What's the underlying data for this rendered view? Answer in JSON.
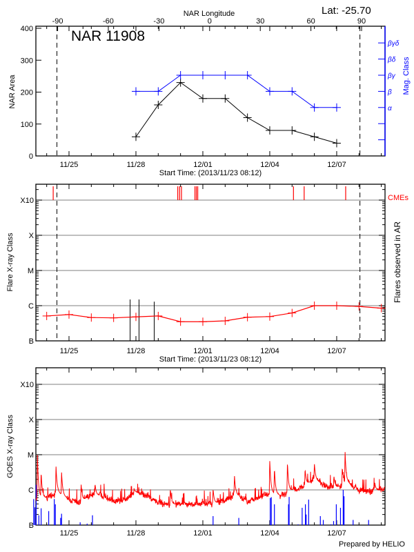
{
  "header": {
    "lat_label": "Lat: -25.70",
    "prepared_by": "Prepared by HELIO"
  },
  "chart_data": [
    {
      "type": "line",
      "title": "NAR 11908",
      "xlabel": "Start Time: (2013/11/23 08:12)",
      "x2label": "NAR Longitude",
      "ylabel": "NAR Area",
      "y2label": "Mag. Class",
      "x_tick_labels": [
        "11/25",
        "11/28",
        "12/01",
        "12/04",
        "12/07"
      ],
      "x_tick_dates": [
        "2013-11-25",
        "2013-11-28",
        "2013-12-01",
        "2013-12-04",
        "2013-12-07"
      ],
      "x2_ticks": [
        -90,
        -60,
        -30,
        0,
        30,
        60,
        90
      ],
      "ylim": [
        0,
        400
      ],
      "y_ticks": [
        0,
        100,
        200,
        300,
        400
      ],
      "y2_categories": [
        "α",
        "β",
        "βγ",
        "βδ",
        "βγδ"
      ],
      "dates": [
        "2013-11-28",
        "2013-11-29",
        "2013-11-30",
        "2013-12-01",
        "2013-12-02",
        "2013-12-03",
        "2013-12-04",
        "2013-12-05",
        "2013-12-06",
        "2013-12-07"
      ],
      "series": [
        {
          "name": "NAR Area",
          "color": "#000000",
          "values": [
            60,
            160,
            230,
            180,
            180,
            120,
            80,
            80,
            60,
            40
          ]
        },
        {
          "name": "Mag. Class",
          "color": "#0000ff",
          "values": [
            "β",
            "β",
            "βγ",
            "βγ",
            "βγ",
            "βγ",
            "β",
            "β",
            "α",
            "α"
          ]
        }
      ],
      "limb_crossings": [
        "2013-11-24T11:00",
        "2013-12-08T01:00"
      ]
    },
    {
      "type": "line",
      "xlabel": "Start Time: (2013/11/23 08:12)",
      "ylabel": "Flare X-ray Class",
      "y2label": "Flares observed in AR",
      "cme_label": "CMEs",
      "y_scale": "log",
      "y_tick_labels": [
        "B",
        "C",
        "M",
        "X",
        "X10"
      ],
      "grid": true,
      "x_tick_labels": [
        "11/25",
        "11/28",
        "12/01",
        "12/04",
        "12/07"
      ],
      "background_flux": {
        "color": "#ff0000",
        "dates": [
          "2013-11-24",
          "2013-11-25",
          "2013-11-26",
          "2013-11-27",
          "2013-11-28",
          "2013-11-29",
          "2013-11-30",
          "2013-12-01",
          "2013-12-02",
          "2013-12-03",
          "2013-12-04",
          "2013-12-05",
          "2013-12-06",
          "2013-12-07",
          "2013-12-08",
          "2013-12-09"
        ],
        "values": [
          5.1e-07,
          5.6e-07,
          4.6e-07,
          4.5e-07,
          4.8e-07,
          5.1e-07,
          3.5e-07,
          3.5e-07,
          3.7e-07,
          4.7e-07,
          4.9e-07,
          6.2e-07,
          1e-06,
          1e-06,
          9.5e-07,
          8.5e-07
        ]
      },
      "flares": [
        {
          "date": "2013-11-27T17:45",
          "peak": 1.5e-06
        },
        {
          "date": "2013-11-28T03:20",
          "peak": 1.5e-06
        },
        {
          "date": "2013-11-28T19:40",
          "peak": 1.3e-06
        }
      ],
      "cmes": [
        "2013-11-24T07:00",
        "2013-11-29T21:00",
        "2013-11-29T23:00",
        "2013-11-30T01:00",
        "2013-11-30T15:30",
        "2013-11-30T17:00",
        "2013-11-30T18:30",
        "2013-12-05T01:30",
        "2013-12-05T13:00",
        "2013-12-07T09:40"
      ],
      "cme_color": "#ff0000",
      "limb_crossings": [
        "2013-11-24T11:00",
        "2013-12-08T01:00"
      ]
    },
    {
      "type": "line",
      "ylabel": "GOES X-ray Class",
      "y_scale": "log",
      "y_tick_labels": [
        "B",
        "C",
        "M",
        "X",
        "X10"
      ],
      "grid": true,
      "x_tick_labels": [
        "11/25",
        "11/28",
        "12/01",
        "12/04",
        "12/07"
      ],
      "goes_flux": {
        "color": "#ff0000",
        "dates": [
          "2013-11-23T12:00",
          "2013-11-24T00:00",
          "2013-11-24T12:00",
          "2013-11-25T00:00",
          "2013-11-25T12:00",
          "2013-11-26T00:00",
          "2013-11-26T12:00",
          "2013-11-27T00:00",
          "2013-11-27T12:00",
          "2013-11-28T00:00",
          "2013-11-28T12:00",
          "2013-11-29T00:00",
          "2013-11-29T12:00",
          "2013-11-30T00:00",
          "2013-11-30T12:00",
          "2013-12-01T00:00",
          "2013-12-01T12:00",
          "2013-12-02T00:00",
          "2013-12-02T12:00",
          "2013-12-03T00:00",
          "2013-12-03T12:00",
          "2013-12-04T00:00",
          "2013-12-04T12:00",
          "2013-12-05T00:00",
          "2013-12-05T12:00",
          "2013-12-06T00:00",
          "2013-12-06T12:00",
          "2013-12-07T00:00",
          "2013-12-07T12:00",
          "2013-12-08T00:00",
          "2013-12-08T12:00",
          "2013-12-09T00:00",
          "2013-12-09T04:00"
        ],
        "values": [
          6e-07,
          6e-07,
          8.5e-07,
          5.5e-07,
          4.4e-07,
          7.4e-07,
          6.9e-07,
          4.7e-07,
          5.3e-07,
          8.5e-07,
          6.9e-07,
          4.4e-07,
          3.8e-07,
          4.1e-07,
          4e-07,
          4.1e-07,
          4.1e-07,
          5.1e-07,
          7.4e-07,
          4.7e-07,
          6e-07,
          8.5e-07,
          6.9e-07,
          1e-06,
          1.2e-06,
          2.1e-06,
          1.25e-06,
          1.2e-06,
          1.6e-06,
          1e-06,
          9.3e-07,
          1e-06,
          1.1e-06
        ],
        "peaks": [
          {
            "date": "2013-11-23T14:00",
            "flux": 1.07e-05
          },
          {
            "date": "2013-11-23T18:00",
            "flux": 3.3e-06
          },
          {
            "date": "2013-11-24T10:00",
            "flux": 4.9e-06
          },
          {
            "date": "2013-11-24T16:00",
            "flux": 3.2e-06
          },
          {
            "date": "2013-11-25T13:00",
            "flux": 1.5e-06
          },
          {
            "date": "2013-11-26T04:00",
            "flux": 1.5e-06
          },
          {
            "date": "2013-11-27T22:00",
            "flux": 1.1e-06
          },
          {
            "date": "2013-11-29T13:00",
            "flux": 1.1e-06
          },
          {
            "date": "2013-12-01T11:00",
            "flux": 1.1e-06
          },
          {
            "date": "2013-12-02T10:00",
            "flux": 2.6e-06
          },
          {
            "date": "2013-12-04T00:00",
            "flux": 7e-06
          },
          {
            "date": "2013-12-04T05:00",
            "flux": 4.3e-06
          },
          {
            "date": "2013-12-04T19:00",
            "flux": 6.3e-06
          },
          {
            "date": "2013-12-05T14:00",
            "flux": 4e-06
          },
          {
            "date": "2013-12-06T00:00",
            "flux": 5.6e-06
          },
          {
            "date": "2013-12-06T21:00",
            "flux": 2.5e-06
          },
          {
            "date": "2013-12-07T06:00",
            "flux": 4.5e-06
          },
          {
            "date": "2013-12-07T09:00",
            "flux": 1.3e-05
          },
          {
            "date": "2013-12-08T17:00",
            "flux": 1.6e-06
          }
        ]
      },
      "events": {
        "color": "#0000ff",
        "dates": [
          "2013-11-23T10:00",
          "2013-11-23T11:15",
          "2013-11-23T12:40",
          "2013-11-23T15:35",
          "2013-11-23T18:00",
          "2013-11-24T02:10",
          "2013-11-24T08:10",
          "2013-11-24T09:20",
          "2013-11-24T15:00",
          "2013-11-24T16:00",
          "2013-11-25T12:00",
          "2013-11-25T19:30",
          "2013-11-26T01:15",
          "2013-12-01T11:00",
          "2013-12-02T14:40",
          "2013-12-04T00:30",
          "2013-12-04T01:40",
          "2013-12-04T05:00",
          "2013-12-04T20:10",
          "2013-12-04T20:50",
          "2013-12-05T06:30",
          "2013-12-05T10:50",
          "2013-12-05T14:20",
          "2013-12-05T15:10",
          "2013-12-05T17:50",
          "2013-12-06T06:25",
          "2013-12-06T09:35",
          "2013-12-06T17:50",
          "2013-12-06T20:40",
          "2013-12-06T23:35",
          "2013-12-07T04:05",
          "2013-12-07T07:00",
          "2013-12-07T07:55",
          "2013-12-07T17:40",
          "2013-12-08T10:20"
        ],
        "values": [
          5.5e-07,
          3.2e-07,
          1.4e-06,
          1.9e-07,
          3e-07,
          2.5e-07,
          5.5e-07,
          3.9e-07,
          1.6e-07,
          2.1e-07,
          1.2e-07,
          1.1e-07,
          1.9e-07,
          1.8e-07,
          1.6e-07,
          5.9e-07,
          6.2e-07,
          3.9e-07,
          3.9e-07,
          6.3e-07,
          1.05e-07,
          3.1e-07,
          3.9e-07,
          2e-07,
          5.3e-07,
          1.8e-07,
          1.4e-07,
          1.05e-07,
          1.3e-07,
          3.9e-07,
          3.1e-07,
          1e-06,
          6.6e-07,
          1.4e-07,
          1.4e-07
        ]
      }
    }
  ]
}
